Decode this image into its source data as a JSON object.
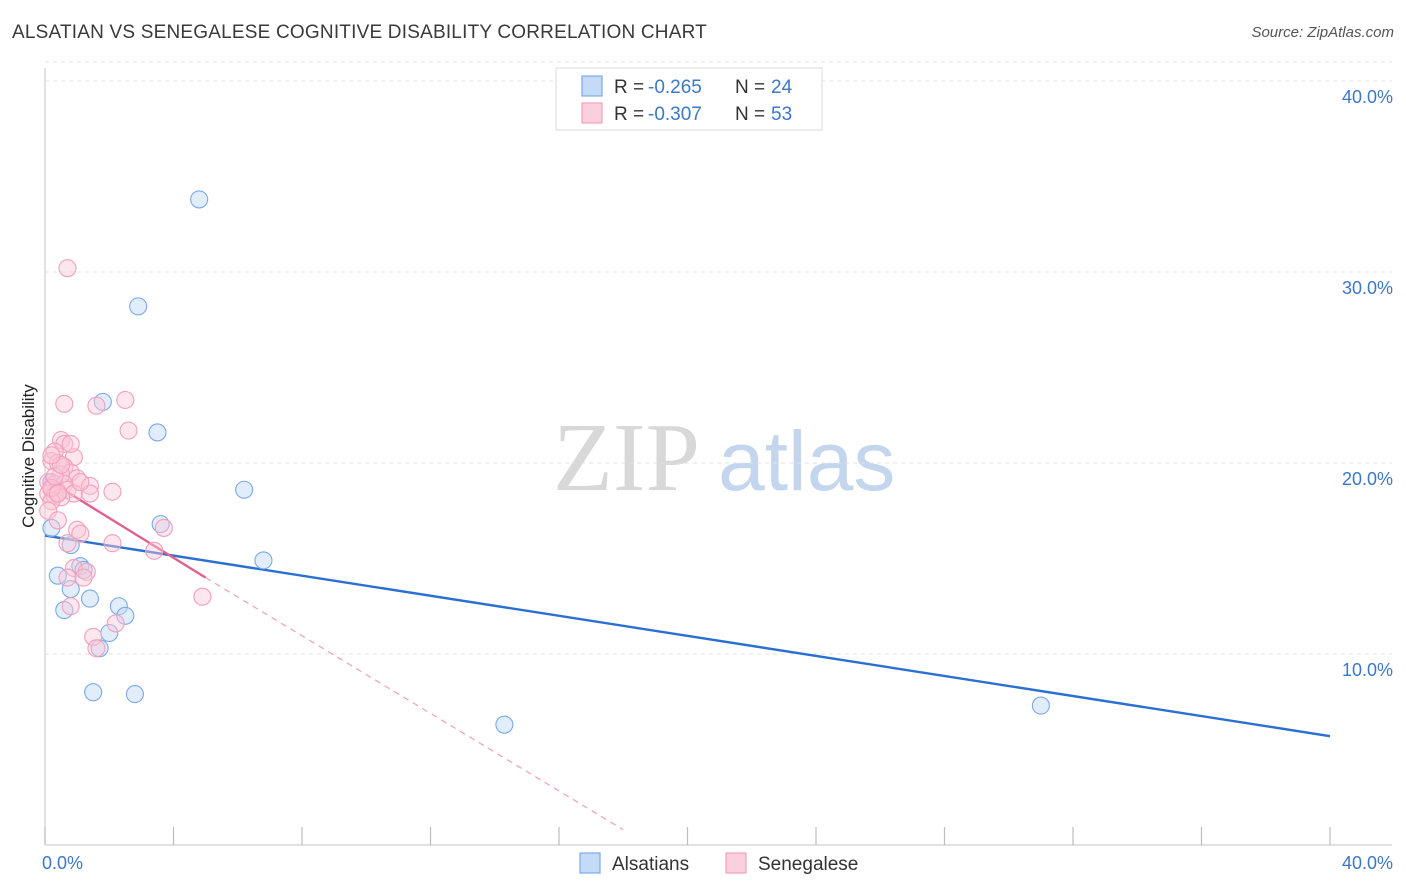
{
  "header": {
    "title": "ALSATIAN VS SENEGALESE COGNITIVE DISABILITY CORRELATION CHART",
    "source": "Source: ZipAtlas.com"
  },
  "watermark": {
    "zip": "ZIP",
    "atlas": "atlas"
  },
  "chart_data": {
    "type": "scatter",
    "ylabel": "Cognitive Disability",
    "xlim": [
      0,
      40
    ],
    "ylim": [
      0,
      41
    ],
    "x_tick_labels": [
      {
        "value": 0,
        "label": "0.0%"
      },
      {
        "value": 40,
        "label": "40.0%"
      }
    ],
    "y_tick_labels": [
      {
        "value": 10,
        "label": "10.0%"
      },
      {
        "value": 20,
        "label": "20.0%"
      },
      {
        "value": 30,
        "label": "30.0%"
      },
      {
        "value": 40,
        "label": "40.0%"
      }
    ],
    "legend": {
      "placement": "top-center",
      "entries": [
        {
          "r_label": "R = ",
          "r_value": "-0.265",
          "n_label": "N = ",
          "n_value": "24"
        },
        {
          "r_label": "R = ",
          "r_value": "-0.307",
          "n_label": "N = ",
          "n_value": "53"
        }
      ]
    },
    "series": [
      {
        "name": "Alsatians",
        "color": "#7aaae8",
        "line_color": "#2a6fd1",
        "trend": {
          "x": [
            0,
            40
          ],
          "y": [
            16.2,
            5.7
          ],
          "style": "solid"
        },
        "points": [
          [
            4.8,
            33.8
          ],
          [
            2.9,
            28.2
          ],
          [
            1.8,
            23.2
          ],
          [
            3.5,
            21.6
          ],
          [
            6.2,
            18.6
          ],
          [
            0.2,
            16.6
          ],
          [
            3.6,
            16.8
          ],
          [
            0.8,
            15.7
          ],
          [
            6.8,
            14.9
          ],
          [
            1.1,
            14.6
          ],
          [
            0.4,
            14.1
          ],
          [
            1.2,
            14.4
          ],
          [
            0.8,
            13.4
          ],
          [
            1.4,
            12.9
          ],
          [
            2.3,
            12.5
          ],
          [
            0.6,
            12.3
          ],
          [
            2.5,
            12.0
          ],
          [
            2.0,
            11.1
          ],
          [
            1.7,
            10.3
          ],
          [
            1.5,
            8.0
          ],
          [
            2.8,
            7.9
          ],
          [
            14.3,
            6.3
          ],
          [
            31.0,
            7.3
          ],
          [
            0.2,
            19.0
          ]
        ]
      },
      {
        "name": "Senegalese",
        "color": "#f2a0bc",
        "line_color": "#e06090",
        "trend": {
          "x": [
            0,
            5.0
          ],
          "y": [
            19.2,
            14.0
          ],
          "style": "solid"
        },
        "trend_extension": {
          "x": [
            5.0,
            18.0
          ],
          "y": [
            14.0,
            0.8
          ],
          "style": "dashed"
        },
        "points": [
          [
            0.7,
            30.2
          ],
          [
            2.5,
            23.3
          ],
          [
            0.6,
            23.1
          ],
          [
            1.6,
            23.0
          ],
          [
            2.6,
            21.7
          ],
          [
            0.5,
            21.2
          ],
          [
            0.6,
            21.0
          ],
          [
            0.3,
            20.6
          ],
          [
            0.9,
            20.3
          ],
          [
            0.2,
            20.1
          ],
          [
            0.4,
            20.0
          ],
          [
            0.6,
            19.8
          ],
          [
            0.8,
            19.5
          ],
          [
            0.5,
            19.4
          ],
          [
            1.0,
            19.2
          ],
          [
            0.1,
            19.0
          ],
          [
            0.3,
            18.9
          ],
          [
            0.6,
            18.9
          ],
          [
            1.4,
            18.8
          ],
          [
            0.2,
            18.6
          ],
          [
            0.4,
            18.5
          ],
          [
            0.7,
            18.6
          ],
          [
            0.9,
            18.4
          ],
          [
            0.1,
            18.4
          ],
          [
            0.3,
            18.3
          ],
          [
            1.4,
            18.4
          ],
          [
            2.1,
            18.5
          ],
          [
            0.5,
            18.2
          ],
          [
            0.2,
            18.0
          ],
          [
            0.1,
            17.5
          ],
          [
            0.4,
            17.0
          ],
          [
            1.0,
            16.5
          ],
          [
            3.7,
            16.6
          ],
          [
            1.1,
            16.3
          ],
          [
            0.7,
            15.8
          ],
          [
            2.1,
            15.8
          ],
          [
            3.4,
            15.4
          ],
          [
            0.9,
            14.5
          ],
          [
            1.3,
            14.3
          ],
          [
            0.7,
            14.0
          ],
          [
            1.2,
            14.0
          ],
          [
            4.9,
            13.0
          ],
          [
            0.8,
            12.5
          ],
          [
            2.2,
            11.6
          ],
          [
            1.5,
            10.9
          ],
          [
            1.6,
            10.3
          ],
          [
            0.2,
            18.7
          ],
          [
            0.3,
            19.3
          ],
          [
            0.5,
            19.9
          ],
          [
            0.8,
            21.0
          ],
          [
            0.2,
            20.4
          ],
          [
            1.1,
            19.0
          ],
          [
            0.4,
            18.4
          ]
        ]
      }
    ]
  }
}
